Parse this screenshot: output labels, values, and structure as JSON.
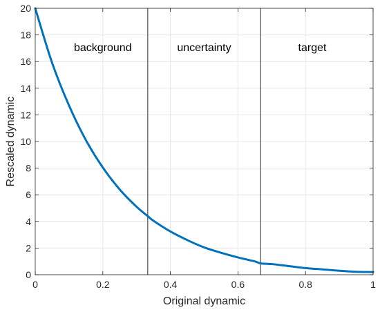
{
  "chart_data": {
    "type": "line",
    "xlabel": "Original dynamic",
    "ylabel": "Rescaled dynamic",
    "xlim": [
      0,
      1
    ],
    "ylim": [
      0,
      20
    ],
    "xticks": [
      0,
      0.2,
      0.4,
      0.6,
      0.8,
      1
    ],
    "xtick_labels": [
      "0",
      "0.2",
      "0.4",
      "0.6",
      "0.8",
      "1"
    ],
    "yticks": [
      0,
      2,
      4,
      6,
      8,
      10,
      12,
      14,
      16,
      18,
      20
    ],
    "ytick_labels": [
      "0",
      "2",
      "4",
      "6",
      "8",
      "10",
      "12",
      "14",
      "16",
      "18",
      "20"
    ],
    "grid": true,
    "series": [
      {
        "color": "#0072bd",
        "x": [
          0,
          0.05,
          0.1,
          0.15,
          0.2,
          0.25,
          0.3,
          0.333,
          0.35,
          0.4,
          0.45,
          0.5,
          0.55,
          0.6,
          0.65,
          0.667,
          0.7,
          0.75,
          0.8,
          0.85,
          0.9,
          0.95,
          1
        ],
        "y": [
          20,
          15.9,
          12.7,
          10.1,
          8.05,
          6.4,
          5.1,
          4.4,
          4.05,
          3.25,
          2.6,
          2.05,
          1.65,
          1.3,
          1.0,
          0.85,
          0.8,
          0.65,
          0.5,
          0.4,
          0.3,
          0.22,
          0.2
        ]
      }
    ],
    "vertical_lines": [
      0.333,
      0.667
    ],
    "region_labels": [
      {
        "text": "background",
        "x": 0.2,
        "y": 16.8
      },
      {
        "text": "uncertainty",
        "x": 0.5,
        "y": 16.8
      },
      {
        "text": "target",
        "x": 0.82,
        "y": 16.8
      }
    ]
  }
}
